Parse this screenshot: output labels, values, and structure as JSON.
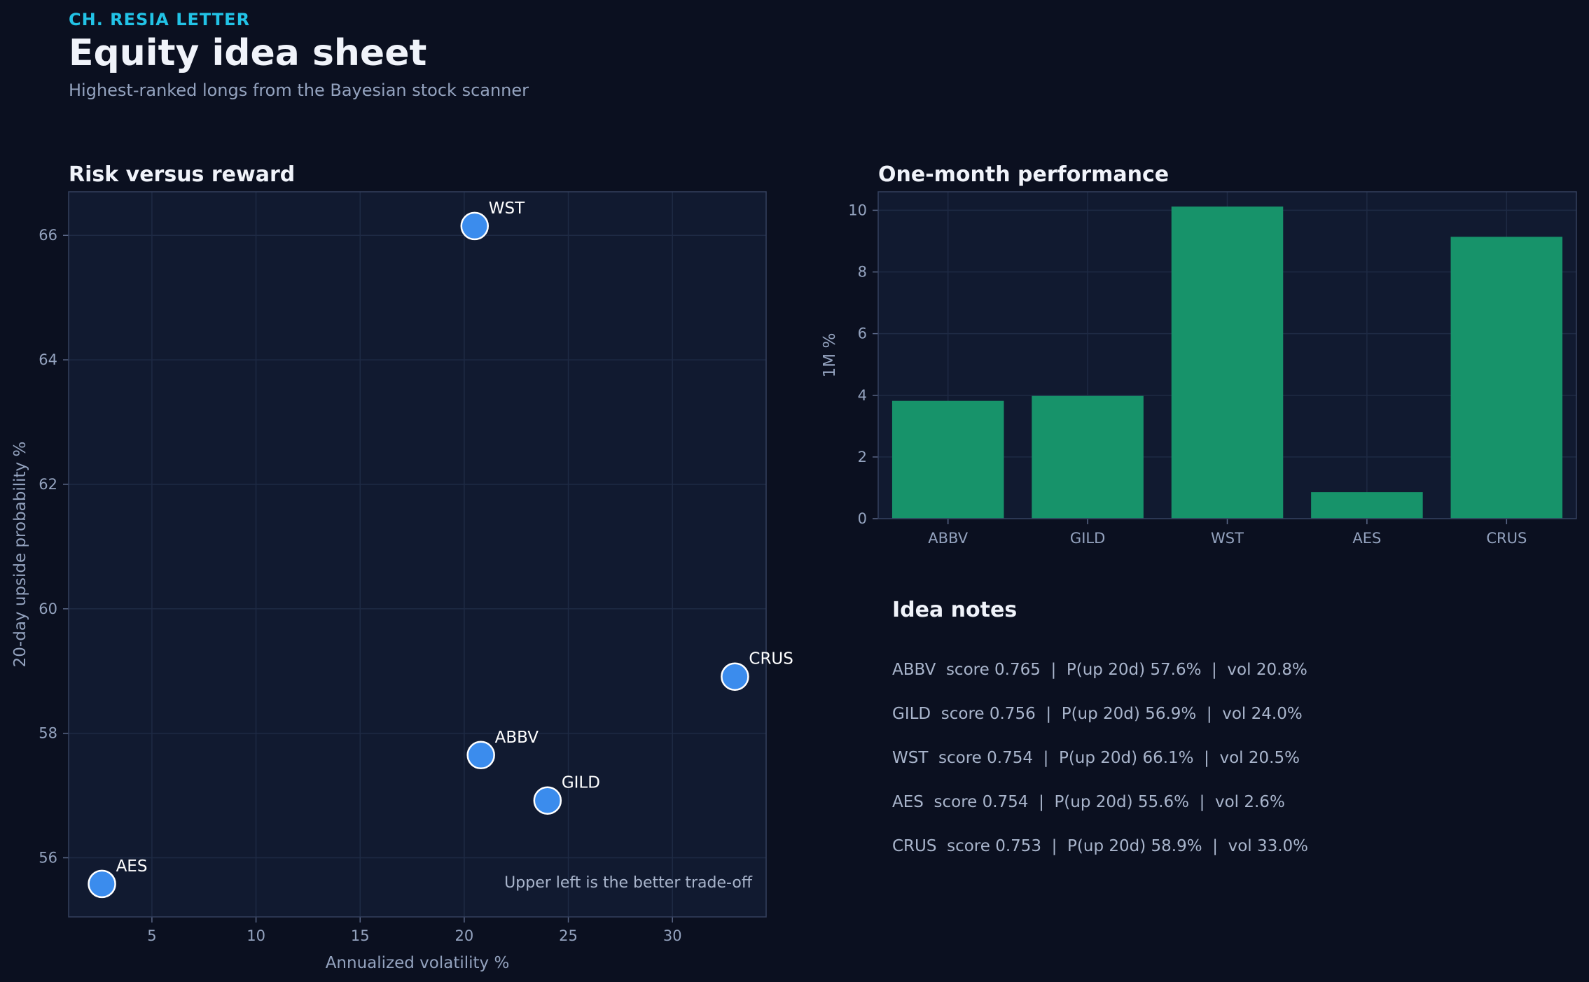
{
  "header": {
    "kicker": "CH. RESIA LETTER",
    "title": "Equity idea sheet",
    "subtitle": "Highest-ranked longs from the Bayesian stock scanner"
  },
  "colors": {
    "background": "#0b1020",
    "panel": "#111a30",
    "accent": "#22c3e6",
    "point": "#3b8ced",
    "bar": "#17936a"
  },
  "chart_data": [
    {
      "type": "scatter",
      "title": "Risk versus reward",
      "xlabel": "Annualized volatility %",
      "ylabel": "20-day upside probability %",
      "xlim": [
        1,
        34.5
      ],
      "ylim": [
        55.05,
        66.7
      ],
      "xticks": [
        5,
        10,
        15,
        20,
        25,
        30
      ],
      "yticks": [
        56,
        58,
        60,
        62,
        64,
        66
      ],
      "grid": true,
      "annotation": "Upper left is the better trade-off",
      "points": [
        {
          "label": "ABBV",
          "x": 20.8,
          "y": 57.65
        },
        {
          "label": "GILD",
          "x": 24.0,
          "y": 56.92
        },
        {
          "label": "WST",
          "x": 20.5,
          "y": 66.15
        },
        {
          "label": "AES",
          "x": 2.6,
          "y": 55.58
        },
        {
          "label": "CRUS",
          "x": 33.0,
          "y": 58.91
        }
      ]
    },
    {
      "type": "bar",
      "title": "One-month performance",
      "xlabel": "",
      "ylabel": "1M %",
      "ylim": [
        0,
        10.6
      ],
      "yticks": [
        0,
        2,
        4,
        6,
        8,
        10
      ],
      "grid": true,
      "categories": [
        "ABBV",
        "GILD",
        "WST",
        "AES",
        "CRUS"
      ],
      "values": [
        3.82,
        3.98,
        10.12,
        0.86,
        9.14
      ]
    }
  ],
  "notes": {
    "title": "Idea notes",
    "lines": [
      "ABBV  score 0.765  |  P(up 20d) 57.6%  |  vol 20.8%",
      "GILD  score 0.756  |  P(up 20d) 56.9%  |  vol 24.0%",
      "WST  score 0.754  |  P(up 20d) 66.1%  |  vol 20.5%",
      "AES  score 0.754  |  P(up 20d) 55.6%  |  vol 2.6%",
      "CRUS  score 0.753  |  P(up 20d) 58.9%  |  vol 33.0%"
    ]
  }
}
